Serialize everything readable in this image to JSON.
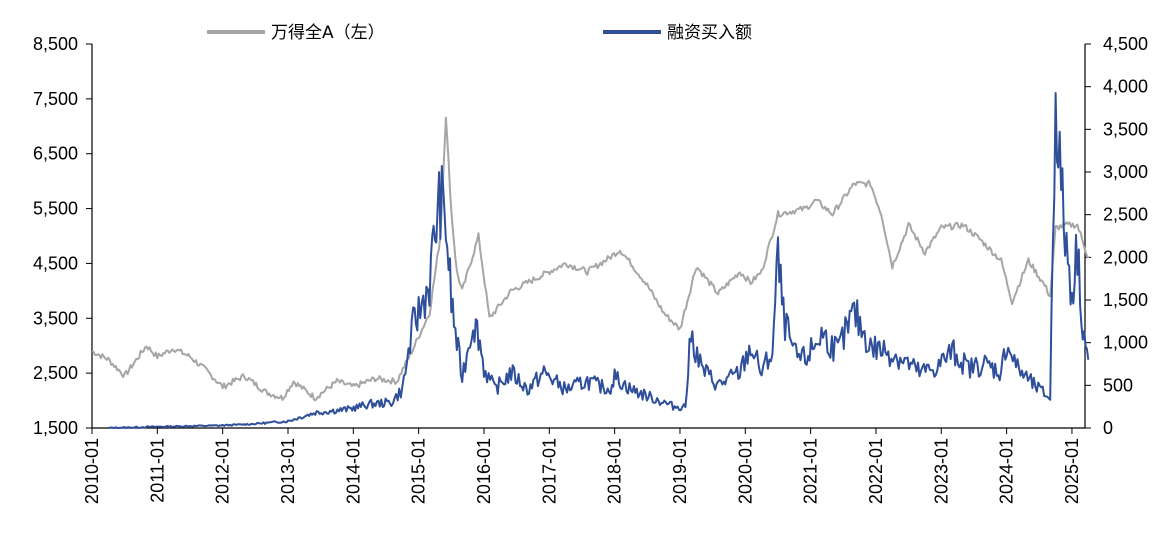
{
  "chart_data": {
    "type": "line",
    "legend": {
      "placement": "top"
    },
    "grid": false,
    "x": {
      "range": [
        "2010-01",
        "2025-04"
      ],
      "tick_labels": [
        "2010-01",
        "2011-01",
        "2012-01",
        "2013-01",
        "2014-01",
        "2015-01",
        "2016-01",
        "2017-01",
        "2018-01",
        "2019-01",
        "2020-01",
        "2021-01",
        "2022-01",
        "2023-01",
        "2024-01",
        "2025-01"
      ]
    },
    "y_left": {
      "range": [
        1500,
        8500
      ],
      "tick_labels": [
        "8,500",
        "7,500",
        "6,500",
        "5,500",
        "4,500",
        "3,500",
        "2,500",
        "1,500"
      ],
      "tick_values": [
        8500,
        7500,
        6500,
        5500,
        4500,
        3500,
        2500,
        1500
      ]
    },
    "y_right": {
      "range": [
        0,
        4500
      ],
      "tick_labels": [
        "4,500",
        "4,000",
        "3,500",
        "3,000",
        "2,500",
        "2,000",
        "1,500",
        "1,000",
        "500",
        "0"
      ],
      "tick_values": [
        4500,
        4000,
        3500,
        3000,
        2500,
        2000,
        1500,
        1000,
        500,
        0
      ]
    },
    "series": [
      {
        "name": "万得全A（左）",
        "axis": "left",
        "color": "#a6a6a6",
        "points": [
          [
            "2010-01",
            2900
          ],
          [
            "2010-04",
            2750
          ],
          [
            "2010-07",
            2450
          ],
          [
            "2010-11",
            3000
          ],
          [
            "2011-01",
            2800
          ],
          [
            "2011-04",
            2950
          ],
          [
            "2011-07",
            2800
          ],
          [
            "2011-10",
            2550
          ],
          [
            "2012-01",
            2250
          ],
          [
            "2012-05",
            2450
          ],
          [
            "2012-09",
            2150
          ],
          [
            "2012-12",
            2050
          ],
          [
            "2013-02",
            2350
          ],
          [
            "2013-06",
            2050
          ],
          [
            "2013-10",
            2350
          ],
          [
            "2014-01",
            2250
          ],
          [
            "2014-05",
            2400
          ],
          [
            "2014-09",
            2350
          ],
          [
            "2014-12",
            2950
          ],
          [
            "2015-03",
            3600
          ],
          [
            "2015-05",
            5000
          ],
          [
            "2015-06",
            7200
          ],
          [
            "2015-07",
            5450
          ],
          [
            "2015-08",
            4350
          ],
          [
            "2015-09",
            4000
          ],
          [
            "2015-12",
            5000
          ],
          [
            "2016-02",
            3500
          ],
          [
            "2016-06",
            4000
          ],
          [
            "2016-12",
            4300
          ],
          [
            "2017-04",
            4500
          ],
          [
            "2017-08",
            4350
          ],
          [
            "2017-12",
            4600
          ],
          [
            "2018-02",
            4750
          ],
          [
            "2018-04",
            4500
          ],
          [
            "2018-07",
            4100
          ],
          [
            "2018-10",
            3600
          ],
          [
            "2019-01",
            3300
          ],
          [
            "2019-04",
            4450
          ],
          [
            "2019-08",
            3950
          ],
          [
            "2019-12",
            4350
          ],
          [
            "2020-02",
            4150
          ],
          [
            "2020-04",
            4350
          ],
          [
            "2020-07",
            5400
          ],
          [
            "2020-12",
            5500
          ],
          [
            "2021-02",
            5650
          ],
          [
            "2021-05",
            5400
          ],
          [
            "2021-09",
            5950
          ],
          [
            "2021-12",
            5950
          ],
          [
            "2022-02",
            5400
          ],
          [
            "2022-04",
            4450
          ],
          [
            "2022-07",
            5200
          ],
          [
            "2022-10",
            4700
          ],
          [
            "2023-01",
            5150
          ],
          [
            "2023-05",
            5200
          ],
          [
            "2023-08",
            4950
          ],
          [
            "2023-12",
            4550
          ],
          [
            "2024-02",
            3800
          ],
          [
            "2024-05",
            4550
          ],
          [
            "2024-08",
            4100
          ],
          [
            "2024-09",
            3900
          ],
          [
            "2024-10",
            5150
          ],
          [
            "2024-12",
            5200
          ],
          [
            "2025-02",
            5200
          ],
          [
            "2025-04",
            4600
          ]
        ]
      },
      {
        "name": "融资买入额",
        "axis": "right",
        "color": "#2f4f9a",
        "points": [
          [
            "2010-04",
            0
          ],
          [
            "2011-01",
            15
          ],
          [
            "2012-01",
            30
          ],
          [
            "2012-06",
            45
          ],
          [
            "2013-01",
            80
          ],
          [
            "2013-06",
            180
          ],
          [
            "2013-12",
            220
          ],
          [
            "2014-04",
            280
          ],
          [
            "2014-08",
            300
          ],
          [
            "2014-10",
            450
          ],
          [
            "2014-12",
            1200
          ],
          [
            "2015-01",
            1350
          ],
          [
            "2015-03",
            1700
          ],
          [
            "2015-04",
            2300
          ],
          [
            "2015-05",
            2700
          ],
          [
            "2015-06",
            2400
          ],
          [
            "2015-07",
            1500
          ],
          [
            "2015-08",
            1000
          ],
          [
            "2015-09",
            600
          ],
          [
            "2015-11",
            1250
          ],
          [
            "2015-12",
            1100
          ],
          [
            "2016-01",
            700
          ],
          [
            "2016-03",
            450
          ],
          [
            "2016-06",
            650
          ],
          [
            "2016-09",
            450
          ],
          [
            "2016-12",
            650
          ],
          [
            "2017-04",
            450
          ],
          [
            "2017-08",
            550
          ],
          [
            "2017-12",
            450
          ],
          [
            "2018-01",
            600
          ],
          [
            "2018-04",
            450
          ],
          [
            "2018-08",
            350
          ],
          [
            "2018-12",
            250
          ],
          [
            "2019-02",
            250
          ],
          [
            "2019-03",
            1100
          ],
          [
            "2019-05",
            700
          ],
          [
            "2019-08",
            500
          ],
          [
            "2019-12",
            650
          ],
          [
            "2020-02",
            950
          ],
          [
            "2020-04",
            650
          ],
          [
            "2020-06",
            900
          ],
          [
            "2020-07",
            2000
          ],
          [
            "2020-08",
            1300
          ],
          [
            "2020-10",
            850
          ],
          [
            "2020-12",
            800
          ],
          [
            "2021-03",
            1100
          ],
          [
            "2021-06",
            900
          ],
          [
            "2021-09",
            1350
          ],
          [
            "2021-12",
            950
          ],
          [
            "2022-03",
            900
          ],
          [
            "2022-06",
            800
          ],
          [
            "2022-09",
            650
          ],
          [
            "2022-12",
            700
          ],
          [
            "2023-03",
            900
          ],
          [
            "2023-06",
            700
          ],
          [
            "2023-09",
            750
          ],
          [
            "2023-12",
            650
          ],
          [
            "2024-01",
            1000
          ],
          [
            "2024-03",
            700
          ],
          [
            "2024-06",
            500
          ],
          [
            "2024-09",
            350
          ],
          [
            "2024-10",
            4000
          ],
          [
            "2024-11",
            2800
          ],
          [
            "2024-12",
            2100
          ],
          [
            "2025-01",
            1600
          ],
          [
            "2025-02",
            2100
          ],
          [
            "2025-03",
            1200
          ],
          [
            "2025-04",
            800
          ]
        ]
      }
    ]
  }
}
